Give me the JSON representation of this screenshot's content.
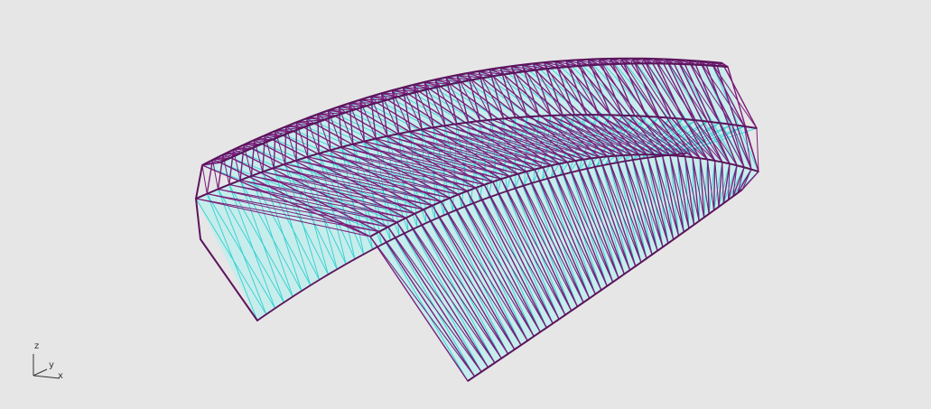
{
  "viewport": {
    "background": "#e6e6e6"
  },
  "model": {
    "name_icon": "truss-frame-3d-model",
    "colors": {
      "frame": "#7a1e7a",
      "frame_dark": "#5c145c",
      "bracing": "#2fd0d0",
      "panel_fill": "#c7ecec"
    }
  },
  "axis_widget": {
    "z_label": "z",
    "y_label": "y",
    "x_label": "x",
    "color": "#333333"
  }
}
